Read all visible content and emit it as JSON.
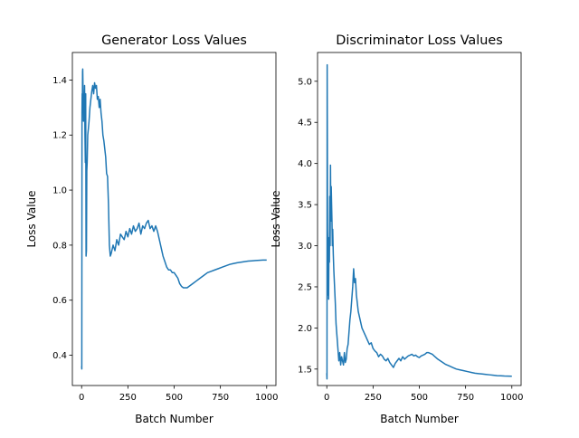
{
  "colors": {
    "line": "#1f77b4",
    "axis": "#000000",
    "background": "#ffffff"
  },
  "chart_data": [
    {
      "type": "line",
      "title": "Generator Loss Values",
      "xlabel": "Batch Number",
      "ylabel": "Loss Value",
      "xlim": [
        -50,
        1050
      ],
      "ylim": [
        0.29,
        1.5
      ],
      "xticks": [
        0,
        250,
        500,
        750,
        1000
      ],
      "xtick_labels": [
        "0",
        "250",
        "500",
        "750",
        "1000"
      ],
      "yticks": [
        0.4,
        0.6,
        0.8,
        1.0,
        1.2,
        1.4
      ],
      "ytick_labels": [
        "0.4",
        "0.6",
        "0.8",
        "1.0",
        "1.2",
        "1.4"
      ],
      "grid": false,
      "series": [
        {
          "x": [
            0,
            1,
            2,
            3,
            4,
            5,
            6,
            8,
            10,
            12,
            14,
            16,
            18,
            20,
            22,
            24,
            26,
            28,
            30,
            33,
            36,
            40,
            45,
            50,
            55,
            60,
            65,
            70,
            75,
            80,
            85,
            90,
            95,
            100,
            105,
            110,
            115,
            120,
            125,
            130,
            135,
            140,
            145,
            150,
            155,
            160,
            170,
            180,
            190,
            200,
            210,
            220,
            230,
            240,
            250,
            260,
            270,
            280,
            290,
            300,
            310,
            320,
            330,
            340,
            350,
            360,
            370,
            380,
            390,
            400,
            410,
            420,
            430,
            440,
            450,
            460,
            470,
            480,
            490,
            500,
            510,
            520,
            530,
            540,
            550,
            560,
            570,
            580,
            600,
            620,
            640,
            660,
            680,
            700,
            720,
            740,
            760,
            780,
            800,
            820,
            840,
            860,
            880,
            900,
            920,
            940,
            960,
            980,
            1000
          ],
          "y": [
            0.36,
            0.35,
            1.28,
            1.35,
            1.3,
            1.43,
            1.44,
            1.35,
            1.25,
            1.33,
            1.28,
            1.38,
            1.2,
            1.1,
            1.35,
            0.76,
            0.78,
            1.07,
            1.1,
            1.2,
            1.22,
            1.25,
            1.3,
            1.33,
            1.36,
            1.38,
            1.35,
            1.39,
            1.37,
            1.38,
            1.33,
            1.34,
            1.3,
            1.33,
            1.28,
            1.25,
            1.2,
            1.18,
            1.15,
            1.12,
            1.06,
            1.05,
            0.95,
            0.8,
            0.76,
            0.77,
            0.8,
            0.78,
            0.82,
            0.8,
            0.84,
            0.83,
            0.82,
            0.85,
            0.83,
            0.86,
            0.84,
            0.87,
            0.85,
            0.86,
            0.88,
            0.84,
            0.87,
            0.86,
            0.88,
            0.89,
            0.86,
            0.87,
            0.85,
            0.87,
            0.85,
            0.82,
            0.79,
            0.76,
            0.74,
            0.72,
            0.71,
            0.71,
            0.7,
            0.7,
            0.69,
            0.68,
            0.66,
            0.65,
            0.645,
            0.645,
            0.645,
            0.65,
            0.66,
            0.67,
            0.68,
            0.69,
            0.7,
            0.705,
            0.71,
            0.715,
            0.72,
            0.725,
            0.73,
            0.733,
            0.736,
            0.738,
            0.74,
            0.742,
            0.743,
            0.744,
            0.745,
            0.746,
            0.746
          ]
        }
      ]
    },
    {
      "type": "line",
      "title": "Discriminator Loss Values",
      "xlabel": "Batch Number",
      "ylabel": "Loss Value",
      "xlim": [
        -50,
        1050
      ],
      "ylim": [
        1.3,
        5.35
      ],
      "xticks": [
        0,
        250,
        500,
        750,
        1000
      ],
      "xtick_labels": [
        "0",
        "250",
        "500",
        "750",
        "1000"
      ],
      "yticks": [
        1.5,
        2.0,
        2.5,
        3.0,
        3.5,
        4.0,
        4.5,
        5.0
      ],
      "ytick_labels": [
        "1.5",
        "2.0",
        "2.5",
        "3.0",
        "3.5",
        "4.0",
        "4.5",
        "5.0"
      ],
      "grid": false,
      "series": [
        {
          "x": [
            0,
            1,
            2,
            3,
            4,
            5,
            6,
            8,
            10,
            12,
            14,
            16,
            18,
            20,
            22,
            24,
            26,
            28,
            30,
            32,
            35,
            38,
            42,
            46,
            50,
            55,
            60,
            65,
            70,
            75,
            80,
            85,
            90,
            95,
            100,
            105,
            110,
            115,
            120,
            125,
            130,
            135,
            140,
            145,
            150,
            155,
            160,
            165,
            170,
            180,
            190,
            200,
            210,
            220,
            230,
            240,
            250,
            260,
            270,
            280,
            290,
            300,
            310,
            320,
            330,
            340,
            350,
            360,
            370,
            380,
            390,
            400,
            410,
            420,
            430,
            440,
            450,
            460,
            470,
            480,
            490,
            500,
            510,
            520,
            530,
            540,
            550,
            560,
            570,
            580,
            600,
            620,
            640,
            660,
            680,
            700,
            720,
            740,
            760,
            780,
            800,
            820,
            840,
            860,
            880,
            900,
            920,
            940,
            960,
            980,
            1000
          ],
          "y": [
            1.45,
            1.38,
            5.2,
            4.3,
            3.2,
            3.05,
            2.4,
            2.6,
            2.35,
            3.1,
            2.8,
            3.6,
            3.0,
            3.98,
            3.3,
            3.72,
            3.5,
            3.3,
            3.0,
            3.2,
            2.9,
            2.7,
            2.5,
            2.3,
            2.05,
            1.9,
            1.75,
            1.6,
            1.7,
            1.55,
            1.65,
            1.6,
            1.55,
            1.7,
            1.58,
            1.62,
            1.75,
            1.8,
            1.95,
            2.1,
            2.2,
            2.35,
            2.5,
            2.72,
            2.55,
            2.6,
            2.4,
            2.3,
            2.2,
            2.1,
            2.0,
            1.95,
            1.9,
            1.85,
            1.8,
            1.82,
            1.75,
            1.72,
            1.7,
            1.65,
            1.68,
            1.66,
            1.62,
            1.6,
            1.63,
            1.58,
            1.55,
            1.52,
            1.57,
            1.6,
            1.63,
            1.6,
            1.65,
            1.62,
            1.64,
            1.66,
            1.67,
            1.68,
            1.66,
            1.67,
            1.65,
            1.64,
            1.66,
            1.67,
            1.68,
            1.7,
            1.7,
            1.69,
            1.68,
            1.66,
            1.62,
            1.59,
            1.56,
            1.54,
            1.52,
            1.5,
            1.49,
            1.48,
            1.47,
            1.46,
            1.45,
            1.445,
            1.44,
            1.435,
            1.43,
            1.425,
            1.42,
            1.418,
            1.415,
            1.414,
            1.413
          ]
        }
      ]
    }
  ]
}
